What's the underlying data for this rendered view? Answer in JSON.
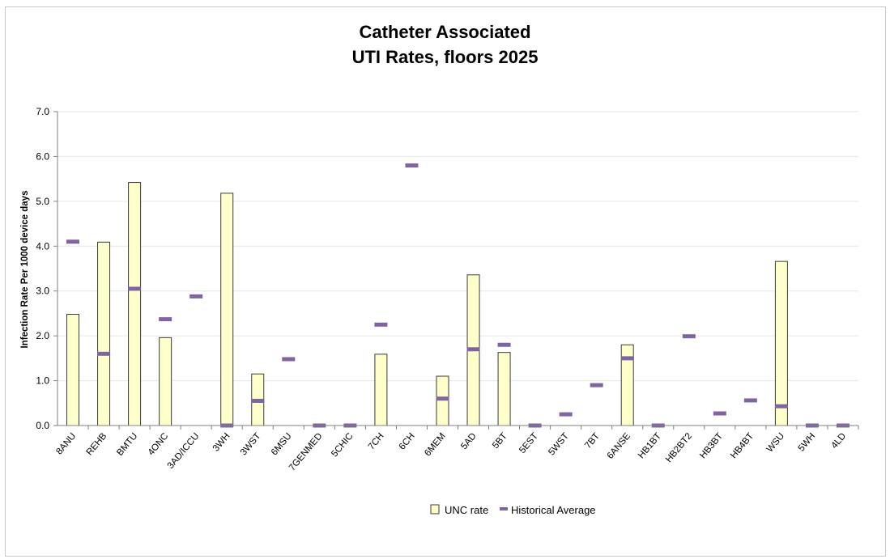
{
  "chart_data": {
    "type": "bar",
    "title_line1": "Catheter Associated",
    "title_line2": "UTI Rates, floors 2025",
    "ylabel": "Infection Rate Per 1000 device days",
    "xlabel": "",
    "ylim": [
      0,
      7.0
    ],
    "yticks": [
      "0.0",
      "1.0",
      "2.0",
      "3.0",
      "4.0",
      "5.0",
      "6.0",
      "7.0"
    ],
    "grid": true,
    "legend_position": "bottom",
    "categories": [
      "8ANU",
      "REHB",
      "BMTU",
      "4ONC",
      "3AD/ICCU",
      "3WH",
      "3WST",
      "6MSU",
      "7GENMED",
      "5CHIC",
      "7CH",
      "6CH",
      "6MEM",
      "5AD",
      "5BT",
      "5EST",
      "5WST",
      "7BT",
      "6ANSE",
      "HB1BT",
      "HB2BT2",
      "HB3BT",
      "HB4BT",
      "WSU",
      "5WH",
      "4LD"
    ],
    "series": [
      {
        "name": "UNC rate",
        "kind": "bar",
        "color": "#FFFFCC",
        "values": [
          2.48,
          4.09,
          5.42,
          1.96,
          0,
          5.18,
          1.15,
          0,
          0,
          0,
          1.59,
          0,
          1.1,
          3.36,
          1.63,
          0,
          0,
          0,
          1.8,
          0,
          0,
          0,
          0,
          3.66,
          0,
          0
        ]
      },
      {
        "name": "Historical Average",
        "kind": "marker",
        "color": "#8064A2",
        "values": [
          4.1,
          1.6,
          3.05,
          2.37,
          2.88,
          0.0,
          0.55,
          1.48,
          0.0,
          0.0,
          2.25,
          5.8,
          0.6,
          1.7,
          1.8,
          0.0,
          0.25,
          0.9,
          1.5,
          0.0,
          1.99,
          0.27,
          0.56,
          0.43,
          0.0,
          0.0
        ]
      }
    ]
  }
}
